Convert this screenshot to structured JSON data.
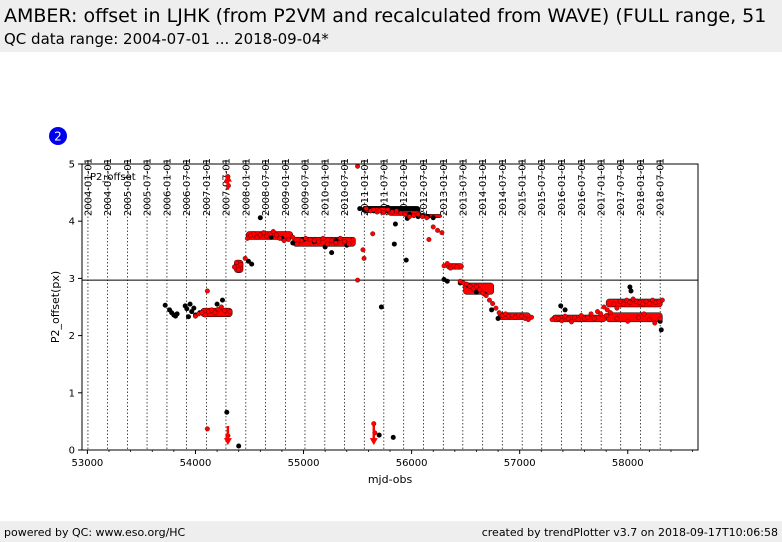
{
  "header": {
    "title": "AMBER: offset in LJHK (from P2VM and recalculated from WAVE) (FULL range, 51",
    "subtitle": "QC data range: 2004-07-01 ... 2018-09-04*"
  },
  "footer": {
    "left": "powered by QC: www.eso.org/HC",
    "right": "created by trendPlotter v3.7 on 2018-09-17T10:06:58"
  },
  "chart_data": {
    "type": "scatter",
    "badge": "2",
    "panel_label": "P2_offset",
    "xlabel": "mjd-obs",
    "ylabel": "P2_offset(px)",
    "xlim": [
      52950,
      58650
    ],
    "ylim": [
      0,
      5
    ],
    "x_ticks": [
      53000,
      54000,
      55000,
      56000,
      57000,
      58000
    ],
    "x_tick_labels": [
      "53000",
      "54000",
      "55000",
      "56000",
      "57000",
      "58000"
    ],
    "y_ticks": [
      0,
      1,
      2,
      3,
      4,
      5
    ],
    "y_tick_labels": [
      "0",
      "1",
      "2",
      "3",
      "4",
      "5"
    ],
    "reference_line": 2.97,
    "date_ticks": [
      {
        "mjd": 53005,
        "label": "2004-01-01"
      },
      {
        "mjd": 53187,
        "label": "2004-07-01"
      },
      {
        "mjd": 53371,
        "label": "2005-01-01"
      },
      {
        "mjd": 53552,
        "label": "2005-07-01"
      },
      {
        "mjd": 53736,
        "label": "2006-01-01"
      },
      {
        "mjd": 53917,
        "label": "2006-07-01"
      },
      {
        "mjd": 54101,
        "label": "2007-01-01"
      },
      {
        "mjd": 54282,
        "label": "2007-07-01"
      },
      {
        "mjd": 54466,
        "label": "2008-01-01"
      },
      {
        "mjd": 54648,
        "label": "2008-07-01"
      },
      {
        "mjd": 54832,
        "label": "2009-01-01"
      },
      {
        "mjd": 55013,
        "label": "2009-07-01"
      },
      {
        "mjd": 55197,
        "label": "2010-01-01"
      },
      {
        "mjd": 55378,
        "label": "2010-07-01"
      },
      {
        "mjd": 55562,
        "label": "2011-01-01"
      },
      {
        "mjd": 55743,
        "label": "2011-07-01"
      },
      {
        "mjd": 55927,
        "label": "2012-01-01"
      },
      {
        "mjd": 56109,
        "label": "2012-07-01"
      },
      {
        "mjd": 56293,
        "label": "2013-01-01"
      },
      {
        "mjd": 56474,
        "label": "2013-07-01"
      },
      {
        "mjd": 56658,
        "label": "2014-01-01"
      },
      {
        "mjd": 56839,
        "label": "2014-07-01"
      },
      {
        "mjd": 57023,
        "label": "2015-01-01"
      },
      {
        "mjd": 57204,
        "label": "2015-07-01"
      },
      {
        "mjd": 57388,
        "label": "2016-01-01"
      },
      {
        "mjd": 57570,
        "label": "2016-07-01"
      },
      {
        "mjd": 57754,
        "label": "2017-01-01"
      },
      {
        "mjd": 57935,
        "label": "2017-07-01"
      },
      {
        "mjd": 58119,
        "label": "2018-01-01"
      },
      {
        "mjd": 58300,
        "label": "2018-07-01"
      }
    ],
    "series_colors": {
      "p2vm": "#000000",
      "wave": "#ff0000"
    },
    "series": [
      {
        "points": [
          [
            53720,
            2.53
          ],
          [
            53760,
            2.45
          ],
          [
            53780,
            2.4
          ],
          [
            53800,
            2.36
          ],
          [
            53815,
            2.34
          ],
          [
            53830,
            2.38
          ],
          [
            53905,
            2.52
          ],
          [
            53920,
            2.47
          ],
          [
            53935,
            2.33
          ],
          [
            53950,
            2.55
          ],
          [
            53965,
            2.42
          ],
          [
            53985,
            2.48
          ],
          [
            54000,
            2.36
          ],
          [
            54040,
            2.4
          ],
          [
            54200,
            2.55
          ],
          [
            54250,
            2.62
          ],
          [
            54290,
            0.66
          ],
          [
            54400,
            0.07
          ],
          [
            54490,
            3.3
          ],
          [
            54520,
            3.25
          ],
          [
            54600,
            4.06
          ],
          [
            54700,
            3.72
          ],
          [
            54800,
            3.7
          ],
          [
            54900,
            3.62
          ],
          [
            55000,
            3.68
          ],
          [
            55100,
            3.64
          ],
          [
            55200,
            3.55
          ],
          [
            55260,
            3.45
          ],
          [
            55300,
            3.66
          ],
          [
            55400,
            3.58
          ],
          [
            55520,
            4.22
          ],
          [
            55560,
            4.2
          ],
          [
            55600,
            4.22
          ],
          [
            55650,
            4.18
          ],
          [
            55720,
            2.5
          ],
          [
            55700,
            0.26
          ],
          [
            55780,
            4.24
          ],
          [
            55820,
            4.18
          ],
          [
            55840,
            3.6
          ],
          [
            55850,
            3.95
          ],
          [
            55830,
            0.22
          ],
          [
            55880,
            4.2
          ],
          [
            55920,
            4.22
          ],
          [
            55950,
            3.32
          ],
          [
            55960,
            4.05
          ],
          [
            55980,
            4.12
          ],
          [
            56020,
            4.1
          ],
          [
            56060,
            4.08
          ],
          [
            56100,
            4.1
          ],
          [
            56150,
            4.08
          ],
          [
            56200,
            4.06
          ],
          [
            56300,
            2.98
          ],
          [
            56330,
            2.95
          ],
          [
            56450,
            2.92
          ],
          [
            56520,
            2.88
          ],
          [
            56600,
            2.76
          ],
          [
            56680,
            2.72
          ],
          [
            56740,
            2.45
          ],
          [
            56800,
            2.3
          ],
          [
            57380,
            2.52
          ],
          [
            57420,
            2.45
          ],
          [
            58020,
            2.85
          ],
          [
            58030,
            2.78
          ],
          [
            58300,
            2.25
          ],
          [
            58310,
            2.1
          ]
        ]
      },
      {
        "points": [
          [
            54000,
            2.34
          ],
          [
            54030,
            2.38
          ],
          [
            54060,
            2.4
          ],
          [
            54090,
            2.36
          ],
          [
            54120,
            2.42
          ],
          [
            54150,
            2.45
          ],
          [
            54180,
            2.4
          ],
          [
            54210,
            2.46
          ],
          [
            54240,
            2.5
          ],
          [
            54270,
            2.44
          ],
          [
            54300,
            2.38
          ],
          [
            54320,
            2.42
          ],
          [
            54290,
            4.7
          ],
          [
            54300,
            4.78
          ],
          [
            54305,
            4.62
          ],
          [
            54110,
            0.37
          ],
          [
            54110,
            2.78
          ],
          [
            54300,
            0.25
          ],
          [
            54360,
            3.2
          ],
          [
            54380,
            3.28
          ],
          [
            54400,
            3.15
          ],
          [
            54420,
            3.24
          ],
          [
            54460,
            3.35
          ],
          [
            54480,
            3.7
          ],
          [
            54510,
            3.75
          ],
          [
            54540,
            3.78
          ],
          [
            54570,
            3.72
          ],
          [
            54600,
            3.76
          ],
          [
            54630,
            3.8
          ],
          [
            54660,
            3.74
          ],
          [
            54690,
            3.78
          ],
          [
            54720,
            3.82
          ],
          [
            54750,
            3.76
          ],
          [
            54780,
            3.7
          ],
          [
            54820,
            3.66
          ],
          [
            54860,
            3.68
          ],
          [
            54900,
            3.72
          ],
          [
            54940,
            3.6
          ],
          [
            54980,
            3.66
          ],
          [
            55020,
            3.7
          ],
          [
            55060,
            3.68
          ],
          [
            55100,
            3.66
          ],
          [
            55140,
            3.64
          ],
          [
            55180,
            3.7
          ],
          [
            55220,
            3.6
          ],
          [
            55260,
            3.66
          ],
          [
            55300,
            3.62
          ],
          [
            55340,
            3.7
          ],
          [
            55380,
            3.64
          ],
          [
            55420,
            3.6
          ],
          [
            55460,
            3.68
          ],
          [
            55500,
            4.96
          ],
          [
            55500,
            2.97
          ],
          [
            55550,
            3.5
          ],
          [
            55560,
            3.35
          ],
          [
            55580,
            4.22
          ],
          [
            55620,
            4.18
          ],
          [
            55650,
            4.2
          ],
          [
            55680,
            4.16
          ],
          [
            55640,
            3.78
          ],
          [
            55650,
            0.46
          ],
          [
            55660,
            0.3
          ],
          [
            55650,
            0.18
          ],
          [
            55700,
            4.18
          ],
          [
            55740,
            4.15
          ],
          [
            55780,
            4.2
          ],
          [
            55820,
            4.16
          ],
          [
            55860,
            4.18
          ],
          [
            55900,
            4.14
          ],
          [
            55940,
            4.12
          ],
          [
            55980,
            4.08
          ],
          [
            56020,
            4.1
          ],
          [
            56060,
            4.12
          ],
          [
            56100,
            4.08
          ],
          [
            56140,
            4.06
          ],
          [
            56160,
            3.68
          ],
          [
            56200,
            3.9
          ],
          [
            56240,
            3.84
          ],
          [
            56280,
            3.8
          ],
          [
            56300,
            3.22
          ],
          [
            56330,
            3.26
          ],
          [
            56360,
            3.18
          ],
          [
            56390,
            3.22
          ],
          [
            56420,
            3.2
          ],
          [
            56450,
            2.95
          ],
          [
            56480,
            2.92
          ],
          [
            56510,
            2.9
          ],
          [
            56540,
            2.86
          ],
          [
            56570,
            2.82
          ],
          [
            56600,
            2.86
          ],
          [
            56630,
            2.8
          ],
          [
            56660,
            2.74
          ],
          [
            56690,
            2.7
          ],
          [
            56720,
            2.62
          ],
          [
            56750,
            2.56
          ],
          [
            56780,
            2.48
          ],
          [
            56810,
            2.4
          ],
          [
            56840,
            2.35
          ],
          [
            56870,
            2.38
          ],
          [
            56900,
            2.34
          ],
          [
            56930,
            2.36
          ],
          [
            56960,
            2.32
          ],
          [
            56990,
            2.36
          ],
          [
            57020,
            2.34
          ],
          [
            57050,
            2.3
          ],
          [
            57080,
            2.28
          ],
          [
            57110,
            2.32
          ],
          [
            57300,
            2.28
          ],
          [
            57330,
            2.32
          ],
          [
            57360,
            2.3
          ],
          [
            57390,
            2.26
          ],
          [
            57420,
            2.34
          ],
          [
            57450,
            2.3
          ],
          [
            57480,
            2.24
          ],
          [
            57510,
            2.32
          ],
          [
            57540,
            2.28
          ],
          [
            57570,
            2.35
          ],
          [
            57600,
            2.3
          ],
          [
            57630,
            2.32
          ],
          [
            57660,
            2.38
          ],
          [
            57690,
            2.3
          ],
          [
            57720,
            2.42
          ],
          [
            57750,
            2.38
          ],
          [
            57780,
            2.5
          ],
          [
            57810,
            2.45
          ],
          [
            57840,
            2.4
          ],
          [
            57870,
            2.55
          ],
          [
            57900,
            2.48
          ],
          [
            57930,
            2.6
          ],
          [
            57960,
            2.55
          ],
          [
            57990,
            2.62
          ],
          [
            58020,
            2.58
          ],
          [
            58050,
            2.64
          ],
          [
            58080,
            2.6
          ],
          [
            58110,
            2.58
          ],
          [
            58140,
            2.55
          ],
          [
            58170,
            2.6
          ],
          [
            58200,
            2.56
          ],
          [
            58230,
            2.62
          ],
          [
            58260,
            2.58
          ],
          [
            58290,
            2.6
          ],
          [
            58320,
            2.62
          ],
          [
            57800,
            2.35
          ],
          [
            57900,
            2.3
          ],
          [
            58000,
            2.25
          ],
          [
            58100,
            2.32
          ],
          [
            58200,
            2.28
          ],
          [
            58300,
            2.3
          ],
          [
            58250,
            2.22
          ],
          [
            58150,
            2.38
          ]
        ]
      }
    ],
    "bands": [
      {
        "series": 1,
        "x": [
          54050,
          54340
        ],
        "y": [
          2.33,
          2.48
        ]
      },
      {
        "series": 1,
        "x": [
          54360,
          54440
        ],
        "y": [
          3.1,
          3.32
        ]
      },
      {
        "series": 1,
        "x": [
          54470,
          54900
        ],
        "y": [
          3.68,
          3.82
        ]
      },
      {
        "series": 1,
        "x": [
          54900,
          55480
        ],
        "y": [
          3.56,
          3.72
        ]
      },
      {
        "series": 0,
        "x": [
          55540,
          56080
        ],
        "y": [
          4.15,
          4.26
        ]
      },
      {
        "series": 1,
        "x": [
          55540,
          55780
        ],
        "y": [
          4.16,
          4.24
        ]
      },
      {
        "series": 1,
        "x": [
          55780,
          56080
        ],
        "y": [
          4.1,
          4.18
        ]
      },
      {
        "series": 1,
        "x": [
          56080,
          56280
        ],
        "y": [
          4.06,
          4.12
        ]
      },
      {
        "series": 1,
        "x": [
          56320,
          56480
        ],
        "y": [
          3.16,
          3.26
        ]
      },
      {
        "series": 1,
        "x": [
          56480,
          56760
        ],
        "y": [
          2.72,
          2.92
        ]
      },
      {
        "series": 1,
        "x": [
          56800,
          57100
        ],
        "y": [
          2.28,
          2.4
        ]
      },
      {
        "series": 1,
        "x": [
          57300,
          57800
        ],
        "y": [
          2.24,
          2.36
        ]
      },
      {
        "series": 1,
        "x": [
          57800,
          58320
        ],
        "y": [
          2.5,
          2.64
        ]
      },
      {
        "series": 1,
        "x": [
          57800,
          58320
        ],
        "y": [
          2.24,
          2.4
        ]
      }
    ],
    "arrows": [
      {
        "x": 54300,
        "from": 4.55,
        "to": 4.78
      },
      {
        "x": 54300,
        "from": 0.42,
        "to": 0.12
      },
      {
        "x": 55650,
        "from": 0.42,
        "to": 0.12
      }
    ]
  }
}
